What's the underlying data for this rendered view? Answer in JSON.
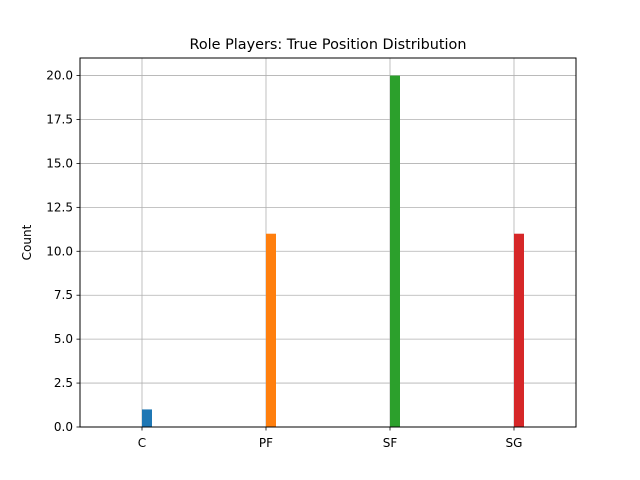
{
  "chart_data": {
    "type": "bar",
    "title": "Role Players: True Position Distribution",
    "xlabel": "",
    "ylabel": "Count",
    "categories": [
      "C",
      "PF",
      "SF",
      "SG"
    ],
    "values": [
      1,
      11,
      20,
      11
    ],
    "colors": [
      "#1f77b4",
      "#ff7f0e",
      "#2ca02c",
      "#d62728"
    ],
    "ylim": [
      0,
      21
    ],
    "yticks": [
      "0.0",
      "2.5",
      "5.0",
      "7.5",
      "10.0",
      "12.5",
      "15.0",
      "17.5",
      "20.0"
    ],
    "grid": true,
    "legend": "none"
  }
}
